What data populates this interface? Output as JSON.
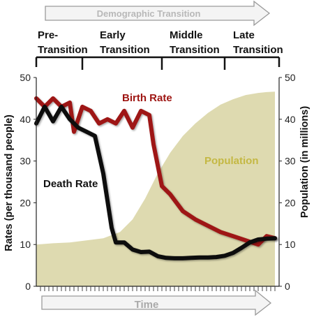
{
  "chart_data": {
    "type": "line",
    "banner_top": "Demographic Transition",
    "banner_bottom": "Time",
    "stages": [
      {
        "line1": "Pre-",
        "line2": "Transition"
      },
      {
        "line1": "Early",
        "line2": "Transition"
      },
      {
        "line1": "Middle",
        "line2": "Transition"
      },
      {
        "line1": "Late",
        "line2": "Transition"
      }
    ],
    "stage_boundaries": [
      0,
      11,
      30,
      45,
      58
    ],
    "ylabel_left": "Rates (per thousand people)",
    "ylabel_right": "Population (in millions)",
    "ylim": [
      0,
      50
    ],
    "yticks": [
      0,
      10,
      20,
      30,
      40,
      50
    ],
    "xlim": [
      0,
      58
    ],
    "x_tick_count": 58,
    "grid": false,
    "series": [
      {
        "name": "Birth Rate",
        "color": "#9e1512",
        "type": "line",
        "x": [
          0,
          2,
          4,
          6,
          8,
          9,
          11,
          13,
          15,
          17,
          19,
          21,
          23,
          25,
          27,
          28,
          30,
          32,
          35,
          38,
          41,
          44,
          47,
          50,
          53,
          55,
          57
        ],
        "y": [
          45,
          43,
          45,
          43,
          44,
          37,
          43,
          42,
          39,
          40,
          39,
          42,
          38,
          42,
          41,
          34,
          24,
          22,
          18,
          16,
          14.5,
          13,
          12,
          11,
          10,
          12,
          11.5
        ]
      },
      {
        "name": "Death Rate",
        "color": "#111111",
        "type": "line",
        "x": [
          0,
          2,
          4,
          6,
          8,
          10,
          12,
          14,
          16,
          18,
          19,
          21,
          23,
          25,
          27,
          29,
          31,
          33,
          35,
          37,
          39,
          41,
          43,
          45,
          47,
          49,
          51,
          53,
          55,
          57
        ],
        "y": [
          39,
          43,
          39.5,
          43,
          40,
          38,
          37,
          36,
          27,
          14,
          10.5,
          10.5,
          8.8,
          8.2,
          8.3,
          7.2,
          6.8,
          6.7,
          6.7,
          6.8,
          6.9,
          6.9,
          7,
          7.3,
          8,
          9.2,
          10.5,
          11.2,
          11.4,
          11.5
        ]
      },
      {
        "name": "Population",
        "color": "#dedab0",
        "type": "area",
        "x": [
          0,
          4,
          8,
          12,
          16,
          20,
          23,
          26,
          29,
          32,
          35,
          38,
          41,
          44,
          47,
          50,
          53,
          55,
          57
        ],
        "y": [
          10,
          10.3,
          10.5,
          11,
          11.5,
          13,
          16,
          21,
          27,
          32,
          36,
          39,
          41.5,
          43.5,
          44.8,
          45.8,
          46.3,
          46.5,
          46.6
        ]
      }
    ],
    "annotations": [
      {
        "text": "Birth Rate",
        "series": "Birth Rate"
      },
      {
        "text": "Death Rate",
        "series": "Death Rate"
      },
      {
        "text": "Population",
        "series": "Population"
      }
    ]
  }
}
